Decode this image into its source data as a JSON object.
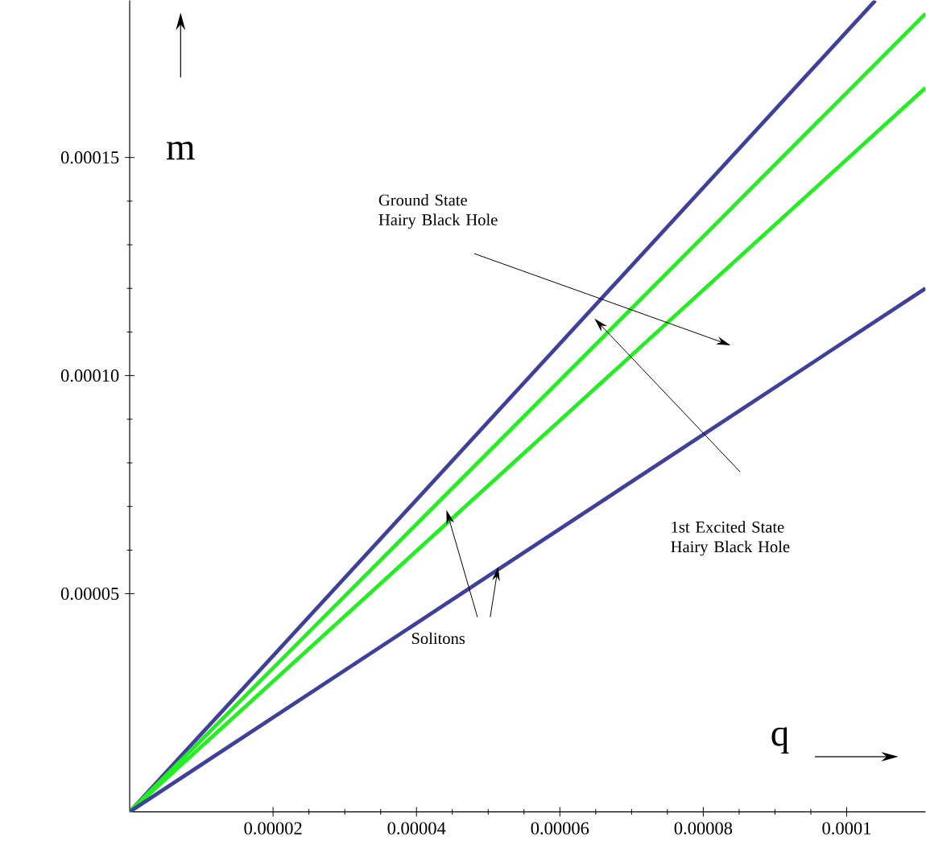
{
  "chart_data": {
    "type": "line",
    "xlabel": "q",
    "ylabel": "m",
    "xlim": [
      0,
      0.000111
    ],
    "ylim": [
      0,
      0.000186
    ],
    "xticks": [
      {
        "value": 2e-05,
        "label": "0.00002"
      },
      {
        "value": 4e-05,
        "label": "0.00004"
      },
      {
        "value": 6e-05,
        "label": "0.00006"
      },
      {
        "value": 8e-05,
        "label": "0.00008"
      },
      {
        "value": 0.0001,
        "label": "0.0001"
      }
    ],
    "yticks": [
      {
        "value": 5e-05,
        "label": "0.00005"
      },
      {
        "value": 0.0001,
        "label": "0.00010"
      },
      {
        "value": 0.00015,
        "label": "0.00015"
      }
    ],
    "series": [
      {
        "color": "#3f3f9c",
        "x": [
          0,
          0.000104
        ],
        "values": [
          0,
          0.000186
        ]
      },
      {
        "color": "#22ee22",
        "x": [
          0,
          0.000111
        ],
        "values": [
          0,
          0.000183
        ]
      },
      {
        "color": "#22ee22",
        "x": [
          0,
          0.000111
        ],
        "values": [
          0,
          0.000166
        ]
      },
      {
        "color": "#3f3f9c",
        "x": [
          0,
          0.000111
        ],
        "values": [
          0,
          0.00012
        ]
      }
    ],
    "annotations": [
      "Ground State\nHairy Black Hole",
      "1st Excited State\nHairy Black Hole",
      "Solitons"
    ]
  }
}
